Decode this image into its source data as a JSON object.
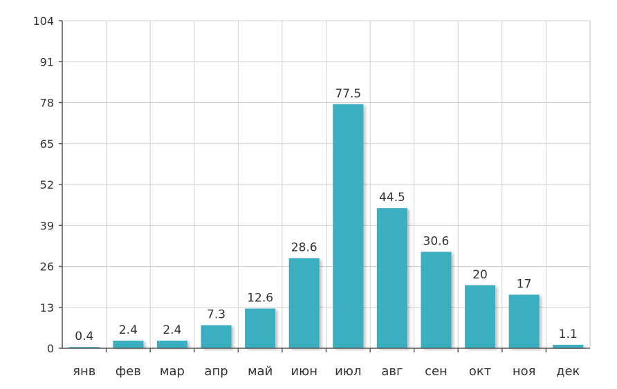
{
  "chart_data": {
    "type": "bar",
    "title": "",
    "xlabel": "",
    "ylabel": "",
    "categories": [
      "янв",
      "фев",
      "мар",
      "апр",
      "май",
      "июн",
      "июл",
      "авг",
      "сен",
      "окт",
      "ноя",
      "дек"
    ],
    "values": [
      0.4,
      2.4,
      2.4,
      7.3,
      12.6,
      28.6,
      77.5,
      44.5,
      30.6,
      20,
      17,
      1.1
    ],
    "value_labels": [
      "0.4",
      "2.4",
      "2.4",
      "7.3",
      "12.6",
      "28.6",
      "77.5",
      "44.5",
      "30.6",
      "20",
      "17",
      "1.1"
    ],
    "y_ticks": [
      0,
      13,
      26,
      39,
      52,
      65,
      78,
      91,
      104
    ],
    "ylim": [
      0,
      104
    ],
    "grid": true,
    "legend": "none",
    "bar_color": "#3aaec0",
    "grid_color": "#cfcfcf"
  }
}
